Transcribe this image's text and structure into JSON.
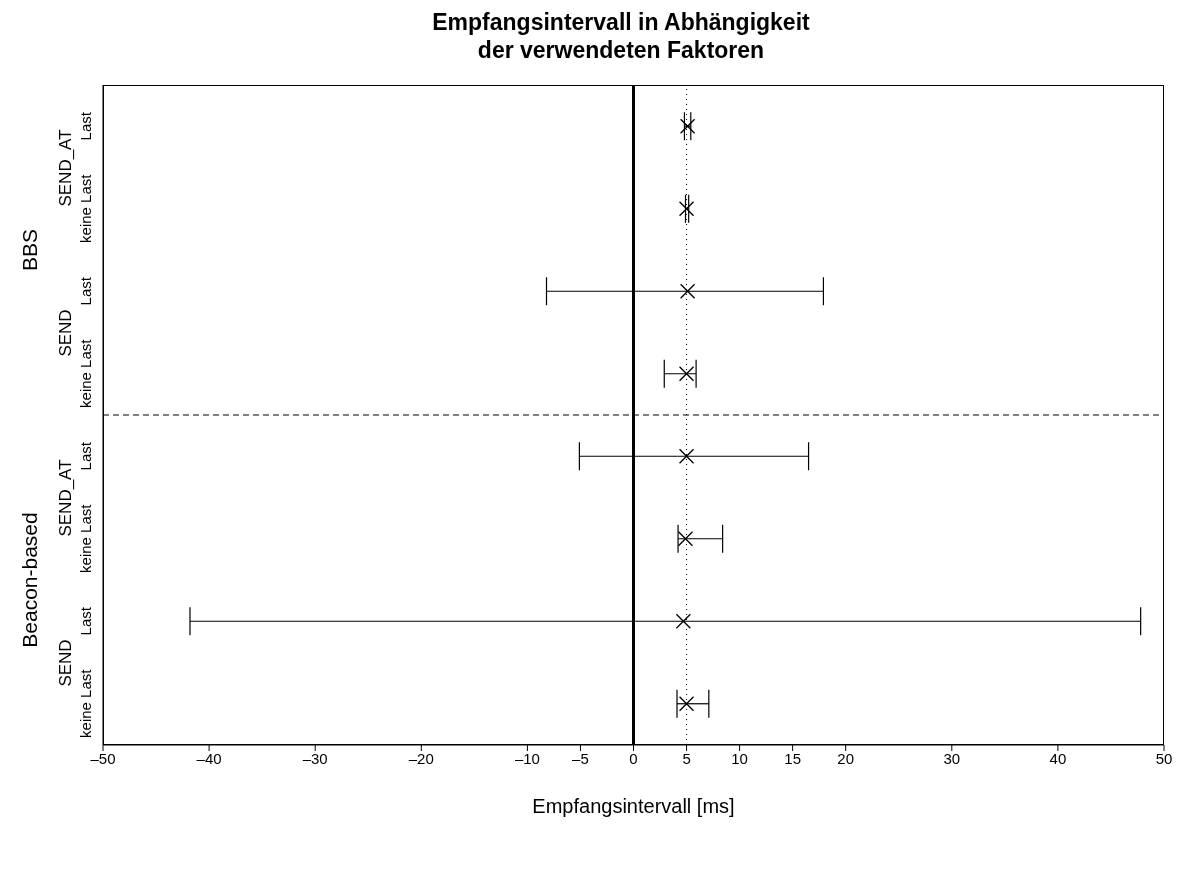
{
  "chart_data": {
    "type": "scatter",
    "orientation": "horizontal",
    "title": "Empfangsintervall in Abhängigkeit\nder verwendeten Faktoren",
    "xlabel": "Empfangsintervall [ms]",
    "categories": [
      "Last",
      "keine Last",
      "Last",
      "keine Last",
      "Last",
      "keine Last",
      "Last",
      "keine Last"
    ],
    "values": [
      5.1,
      5.0,
      5.1,
      5.0,
      5.0,
      4.9,
      4.7,
      5.0
    ],
    "errors": [
      [
        4.8,
        5.4
      ],
      [
        4.9,
        5.2
      ],
      [
        -8.2,
        17.9
      ],
      [
        2.9,
        5.9
      ],
      [
        -5.1,
        16.5
      ],
      [
        4.2,
        8.4
      ],
      [
        -41.8,
        47.8
      ],
      [
        4.1,
        7.1
      ]
    ],
    "color": "#000000",
    "marker": "cross",
    "annotations": [
      "SEND_AT",
      "SEND",
      "SEND_AT",
      "SEND",
      "BBS",
      "Beacon-based"
    ],
    "xlim": [
      -50,
      50
    ],
    "xticks": [
      {
        "value": -50,
        "label": "–50"
      },
      {
        "value": -40,
        "label": "–40"
      },
      {
        "value": -30,
        "label": "–30"
      },
      {
        "value": -20,
        "label": "–20"
      },
      {
        "value": -10,
        "label": "–10"
      },
      {
        "value": -5,
        "label": "–5"
      },
      0,
      5,
      10,
      15,
      20,
      30,
      40,
      50
    ],
    "ref_lines": [
      {
        "axis": "x",
        "value": 0,
        "line_style": "solid"
      },
      {
        "axis": "x",
        "value": 5,
        "line_style": "dotted"
      }
    ],
    "grid": false,
    "legend": false
  }
}
